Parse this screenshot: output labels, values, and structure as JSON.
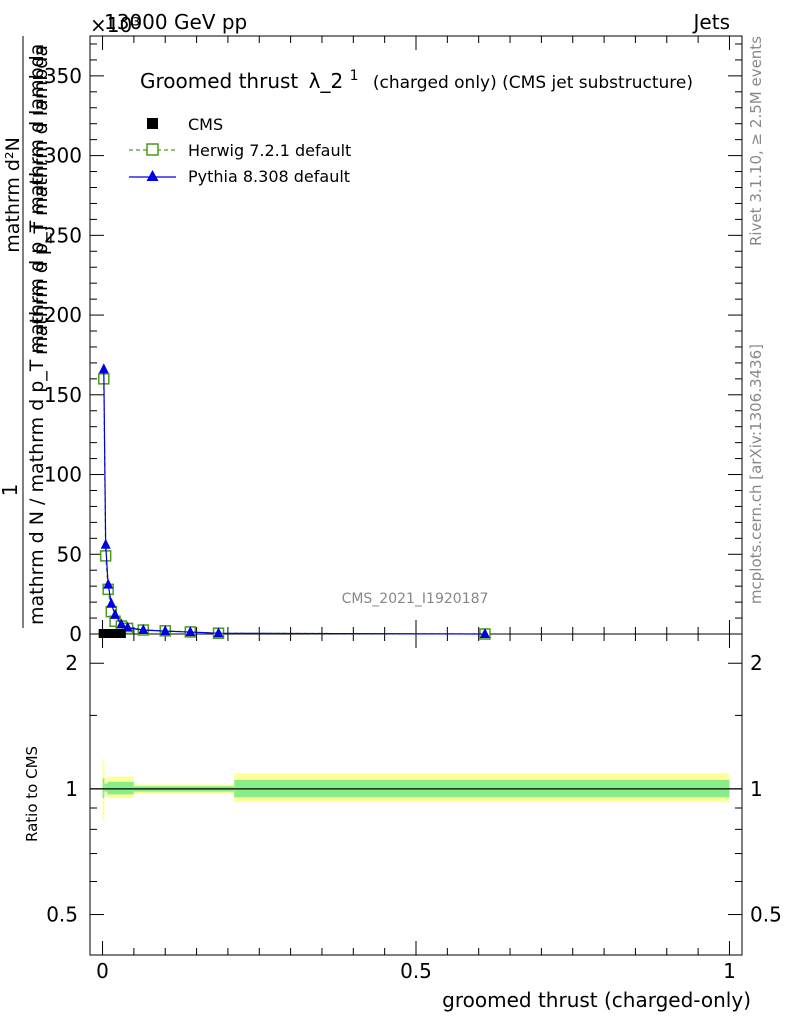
{
  "header": {
    "exponent_label": "×10³",
    "energy_label": "13000 GeV pp",
    "process_label": "Jets"
  },
  "side_labels": {
    "rivet": "Rivet 3.1.10, ≥ 2.5M events",
    "mcplots": "mcplots.cern.ch [arXiv:1306.3436]"
  },
  "colors": {
    "cms": "#000000",
    "herwig": "#4c9a1a",
    "pythia": "#0000e0",
    "band_outer": "#ffff99",
    "band_inner": "#88ee88"
  },
  "chart_data": [
    {
      "type": "line",
      "title": "Groomed thrust λ_2¹",
      "title_main": "Groomed thrust",
      "title_symbol": "λ_2",
      "title_sup": "1",
      "subtitle": "(charged only) (CMS jet substructure)",
      "analysis_id": "CMS_2021_I1920187",
      "ylabel_top": "1",
      "ylabel_bottom": "mathrm d N / mathrm d p_T mathrm d p_T mathrm d lambda",
      "ylabel_numer": "mathrm d²N",
      "ylabel_denom": "mathrm d p_T mathrm d lambda",
      "y_scale": "×10³",
      "xlim": [
        -0.02,
        1.02
      ],
      "ylim": [
        0,
        375
      ],
      "yticks": [
        0,
        50,
        100,
        150,
        200,
        250,
        300,
        350
      ],
      "ytick_labels": [
        "0",
        "50",
        "100",
        "150",
        "200",
        "250",
        "300",
        "350"
      ],
      "legend_position": "top-left",
      "series": [
        {
          "name": "CMS",
          "marker": "square-filled",
          "x": [
            0.001,
            0.005,
            0.01,
            0.015,
            0.02,
            0.025,
            0.03
          ],
          "y": [
            0,
            0,
            0,
            0,
            0,
            0,
            0
          ]
        },
        {
          "name": "Herwig 7.2.1 default",
          "marker": "square-open",
          "linestyle": "dashed",
          "x": [
            0.002,
            0.005,
            0.009,
            0.014,
            0.02,
            0.03,
            0.04,
            0.065,
            0.1,
            0.14,
            0.185,
            0.61
          ],
          "y": [
            160,
            49,
            28,
            14,
            8,
            5,
            3.5,
            2.5,
            2,
            1.3,
            0.5,
            0
          ]
        },
        {
          "name": "Pythia 8.308 default",
          "marker": "triangle-filled",
          "linestyle": "solid",
          "x": [
            0.002,
            0.005,
            0.009,
            0.014,
            0.02,
            0.03,
            0.04,
            0.065,
            0.1,
            0.14,
            0.185,
            0.61
          ],
          "y": [
            166,
            56,
            31,
            19,
            12,
            6,
            4,
            2.5,
            1.8,
            1.2,
            0.5,
            0
          ]
        }
      ]
    },
    {
      "type": "line",
      "ylabel": "Ratio to CMS",
      "xlabel": "groomed thrust (charged-only)",
      "xlim": [
        -0.02,
        1.02
      ],
      "ylim": [
        0.4,
        2.35
      ],
      "y_scale": "log",
      "xticks": [
        0,
        0.5,
        1
      ],
      "xtick_labels": [
        "0",
        "0.5",
        "1"
      ],
      "yticks": [
        0.5,
        1,
        2
      ],
      "ytick_labels": [
        "0.5",
        "1",
        "2"
      ],
      "bands": [
        {
          "x_from": 0.0,
          "x_to": 0.003,
          "outer": [
            0.84,
            1.18
          ],
          "inner": [
            0.95,
            1.06
          ]
        },
        {
          "x_from": 0.003,
          "x_to": 0.008,
          "outer": [
            0.97,
            1.06
          ],
          "inner": [
            0.985,
            1.03
          ]
        },
        {
          "x_from": 0.008,
          "x_to": 0.05,
          "outer": [
            0.95,
            1.07
          ],
          "inner": [
            0.97,
            1.04
          ]
        },
        {
          "x_from": 0.05,
          "x_to": 0.21,
          "outer": [
            0.975,
            1.025
          ],
          "inner": [
            0.985,
            1.015
          ]
        },
        {
          "x_from": 0.21,
          "x_to": 1.0,
          "outer": [
            0.93,
            1.09
          ],
          "inner": [
            0.955,
            1.05
          ]
        }
      ]
    }
  ]
}
